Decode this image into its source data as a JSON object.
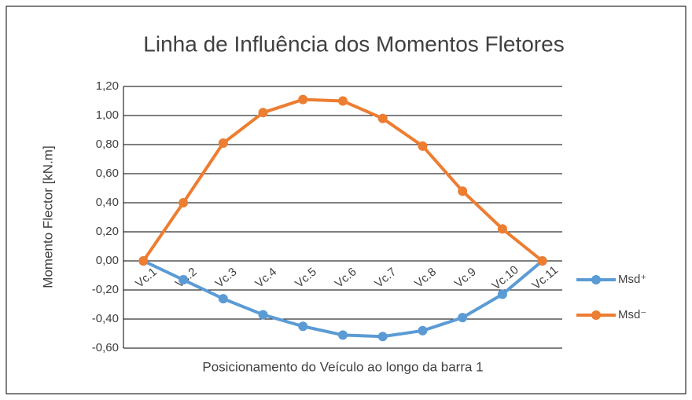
{
  "chart_data": {
    "type": "line",
    "title": "Linha de Influência dos Momentos Fletores",
    "x_label": "Posicionamento do Veículo ao longo da barra 1",
    "y_label": "Momento Flector [kN.m]",
    "categories": [
      "Vc.1",
      "Vc.2",
      "Vc.3",
      "Vc.4",
      "Vc.5",
      "Vc.6",
      "Vc.7",
      "Vc.8",
      "Vc.9",
      "Vc.10",
      "Vc.11"
    ],
    "series": [
      {
        "name": "Msd⁺",
        "color": "#5b9bd5",
        "values": [
          0,
          -0.13,
          -0.26,
          -0.37,
          -0.45,
          -0.51,
          -0.52,
          -0.48,
          -0.39,
          -0.23,
          0
        ]
      },
      {
        "name": "Msd⁻",
        "color": "#ed7d31",
        "values": [
          0,
          0.4,
          0.81,
          1.02,
          1.11,
          1.1,
          0.98,
          0.79,
          0.48,
          0.22,
          0
        ]
      }
    ],
    "ylim": [
      -0.6,
      1.2
    ],
    "yticks": [
      {
        "value": -0.6,
        "label": "-0,60"
      },
      {
        "value": -0.4,
        "label": "-0,40"
      },
      {
        "value": -0.2,
        "label": "-0,20"
      },
      {
        "value": 0,
        "label": "0,00"
      },
      {
        "value": 0.2,
        "label": "0,20"
      },
      {
        "value": 0.4,
        "label": "0,40"
      },
      {
        "value": 0.6,
        "label": "0,60"
      },
      {
        "value": 0.8,
        "label": "0,80"
      },
      {
        "value": 1.0,
        "label": "1,00"
      },
      {
        "value": 1.2,
        "label": "1,20"
      }
    ],
    "grid": true,
    "legend": "right"
  }
}
